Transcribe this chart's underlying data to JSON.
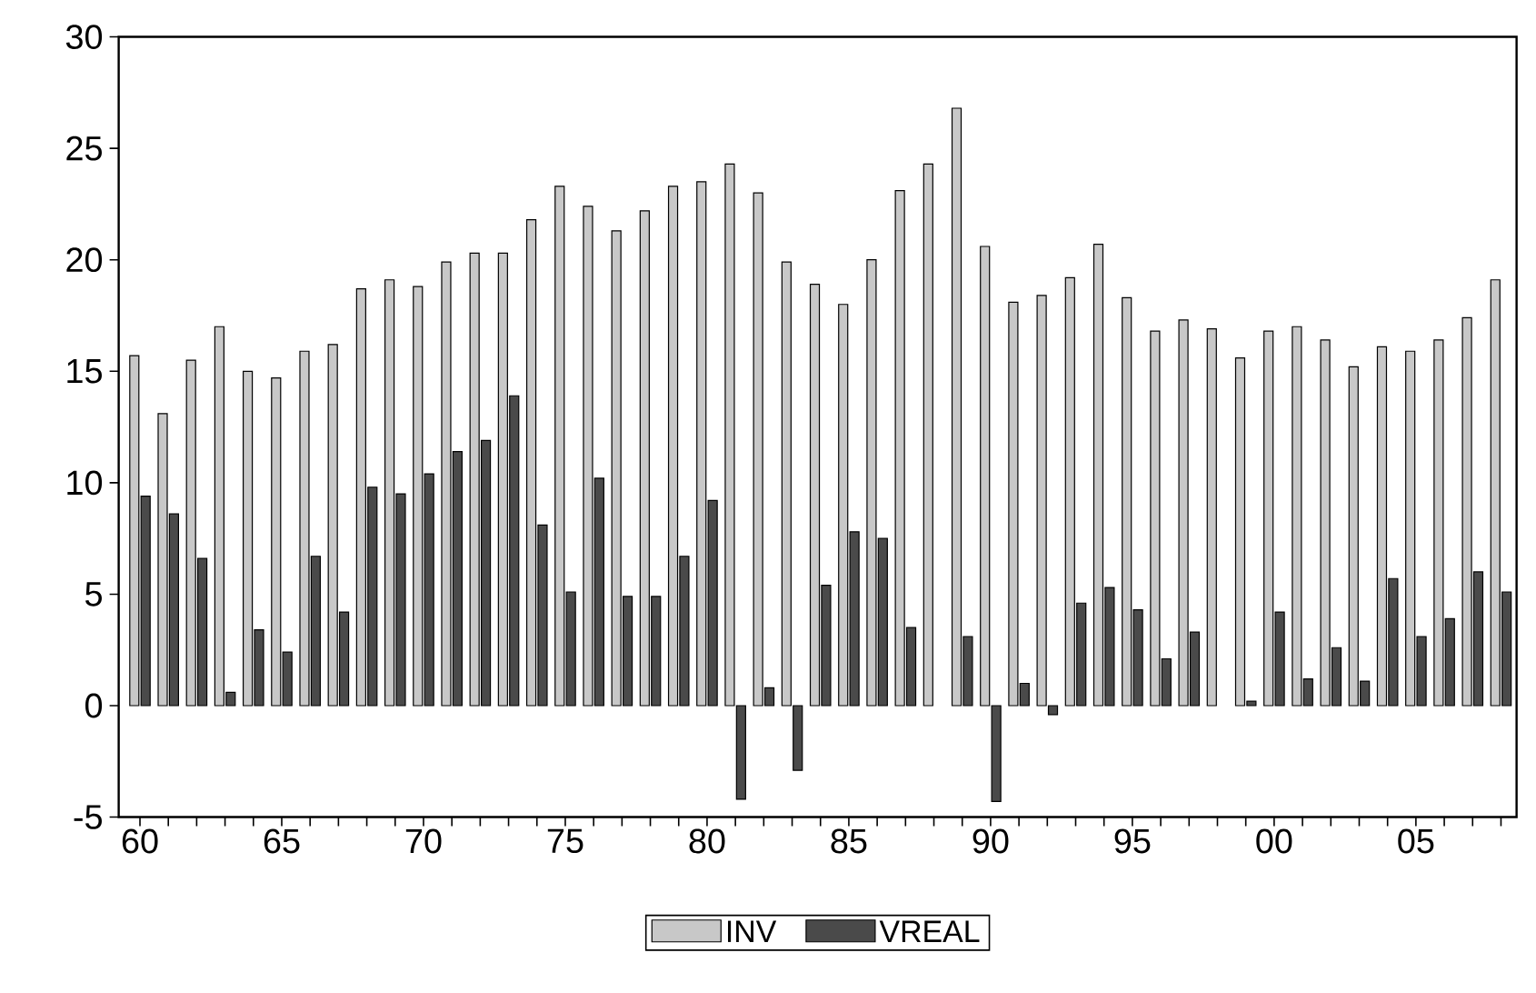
{
  "chart_data": {
    "type": "bar",
    "categories": [
      "60",
      null,
      null,
      null,
      null,
      "65",
      null,
      null,
      null,
      null,
      "70",
      null,
      null,
      null,
      null,
      "75",
      null,
      null,
      null,
      null,
      "80",
      null,
      null,
      null,
      null,
      "85",
      null,
      null,
      null,
      null,
      "90",
      null,
      null,
      null,
      null,
      "95",
      null,
      null,
      null,
      null,
      "00",
      null,
      null,
      null,
      null,
      "05",
      null,
      null,
      null
    ],
    "series": [
      {
        "name": "INV",
        "color": "#c8c8c8",
        "values": [
          15.7,
          13.1,
          15.5,
          17.0,
          15.0,
          14.7,
          15.9,
          16.2,
          18.7,
          19.1,
          18.8,
          19.9,
          20.3,
          20.3,
          21.8,
          23.3,
          22.4,
          21.3,
          22.2,
          23.3,
          23.5,
          24.3,
          23.0,
          19.9,
          18.9,
          18.0,
          20.0,
          23.1,
          24.3,
          26.8,
          20.6,
          18.1,
          18.4,
          19.2,
          20.7,
          18.3,
          16.8,
          17.3,
          16.9,
          15.6,
          16.8,
          17.0,
          16.4,
          15.2,
          16.1,
          15.9,
          16.4,
          17.4,
          19.1
        ]
      },
      {
        "name": "VREAL",
        "color": "#4a4a4a",
        "values": [
          9.4,
          8.6,
          6.6,
          0.6,
          3.4,
          2.4,
          6.7,
          4.2,
          9.8,
          9.5,
          10.4,
          11.4,
          11.9,
          13.9,
          8.1,
          5.1,
          10.2,
          4.9,
          4.9,
          6.7,
          9.2,
          -4.2,
          0.8,
          -2.9,
          5.4,
          7.8,
          7.5,
          3.5,
          null,
          3.1,
          -4.3,
          1.0,
          -0.4,
          4.6,
          5.3,
          4.3,
          2.1,
          3.3,
          null,
          0.2,
          4.2,
          1.2,
          2.6,
          1.1,
          5.7,
          3.1,
          3.9,
          6.0,
          5.1
        ]
      }
    ],
    "ylim": [
      -5,
      30
    ],
    "yticks": [
      -5,
      0,
      5,
      10,
      15,
      20,
      25,
      30
    ],
    "legend": "bottom"
  }
}
